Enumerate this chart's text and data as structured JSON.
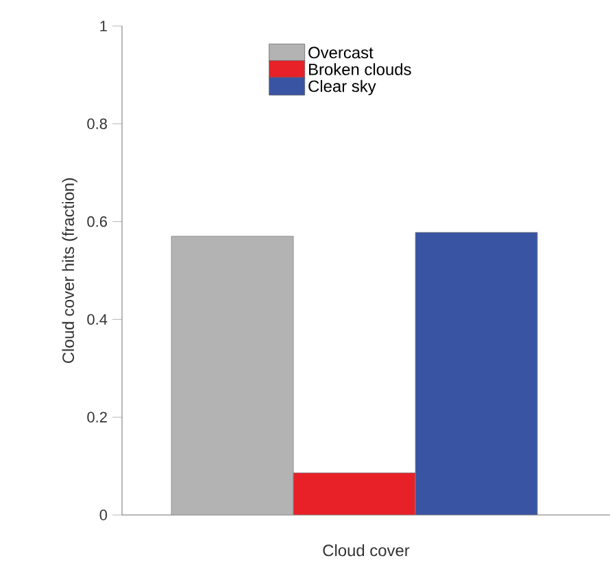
{
  "chart_data": {
    "type": "bar",
    "xlabel": "Cloud cover",
    "ylabel": "Cloud cover hits (fraction)",
    "categories": [
      null
    ],
    "series": [
      {
        "name": "Overcast",
        "color": "#b3b3b3",
        "values": [
          0.57
        ]
      },
      {
        "name": "Broken clouds",
        "color": "#e82128",
        "values": [
          0.086
        ]
      },
      {
        "name": "Clear sky",
        "color": "#3a54a4",
        "values": [
          0.578
        ]
      }
    ],
    "ylim": [
      0,
      1
    ],
    "yticks": [
      0,
      0.2,
      0.4,
      0.6,
      0.8,
      1
    ],
    "legend": "top",
    "grid": false
  }
}
